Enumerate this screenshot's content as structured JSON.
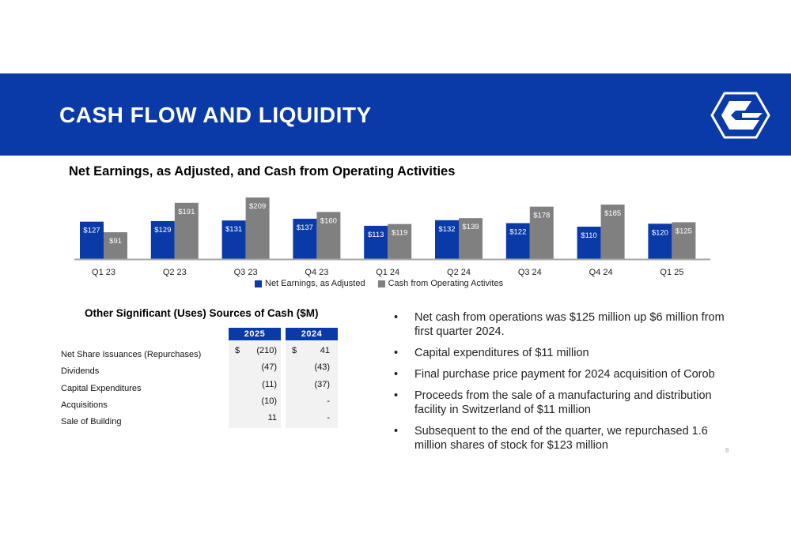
{
  "header": {
    "title": "CASH FLOW AND LIQUIDITY"
  },
  "colors": {
    "banner": "#0a3aa8",
    "net_earnings": "#0a3aa8",
    "cash_ops": "#808080"
  },
  "chart_data": {
    "type": "bar",
    "title": "Net Earnings, as Adjusted, and Cash from Operating Activities",
    "categories": [
      "Q1 23",
      "Q2 23",
      "Q3 23",
      "Q4 23",
      "Q1 24",
      "Q2 24",
      "Q3 24",
      "Q4 24",
      "Q1 25"
    ],
    "series": [
      {
        "name": "Net Earnings, as Adjusted",
        "values": [
          127,
          129,
          131,
          137,
          113,
          132,
          122,
          110,
          120
        ],
        "labels": [
          "$127",
          "$129",
          "$131",
          "$137",
          "$113",
          "$132",
          "$122",
          "$110",
          "$120"
        ]
      },
      {
        "name": "Cash from Operating Activites",
        "values": [
          91,
          191,
          209,
          160,
          119,
          139,
          178,
          185,
          125
        ],
        "labels": [
          "$91",
          "$191",
          "$209",
          "$160",
          "$119",
          "$139",
          "$178",
          "$185",
          "$125"
        ]
      }
    ],
    "ylim": [
      0,
      220
    ],
    "grid": false,
    "legend": "bottom"
  },
  "table": {
    "title": "Other Significant (Uses) Sources of Cash ($M)",
    "columns": [
      "2025",
      "2024"
    ],
    "currency_symbol": "$",
    "rows": [
      {
        "label": "Net Share Issuances (Repurchases)",
        "v2025": "(210)",
        "v2024": "41"
      },
      {
        "label": "Dividends",
        "v2025": "(47)",
        "v2024": "(43)"
      },
      {
        "label": "Capital Expenditures",
        "v2025": "(11)",
        "v2024": "(37)"
      },
      {
        "label": "Acquisitions",
        "v2025": "(10)",
        "v2024": "-"
      },
      {
        "label": "Sale of Building",
        "v2025": "11",
        "v2024": "-"
      }
    ]
  },
  "bullets": {
    "marker": "•",
    "items": [
      "Net cash from operations was $125 million up $6 million from first quarter 2024.",
      "Capital expenditures of $11 million",
      "Final purchase price payment for 2024 acquisition of Corob",
      "Proceeds from the sale of a manufacturing and distribution facility in Switzerland of $11 million",
      "Subsequent to the end of the quarter, we repurchased 1.6 million shares of stock for $123 million"
    ]
  },
  "page_number": "8",
  "logo": {
    "icon": "company-logo-icon"
  }
}
